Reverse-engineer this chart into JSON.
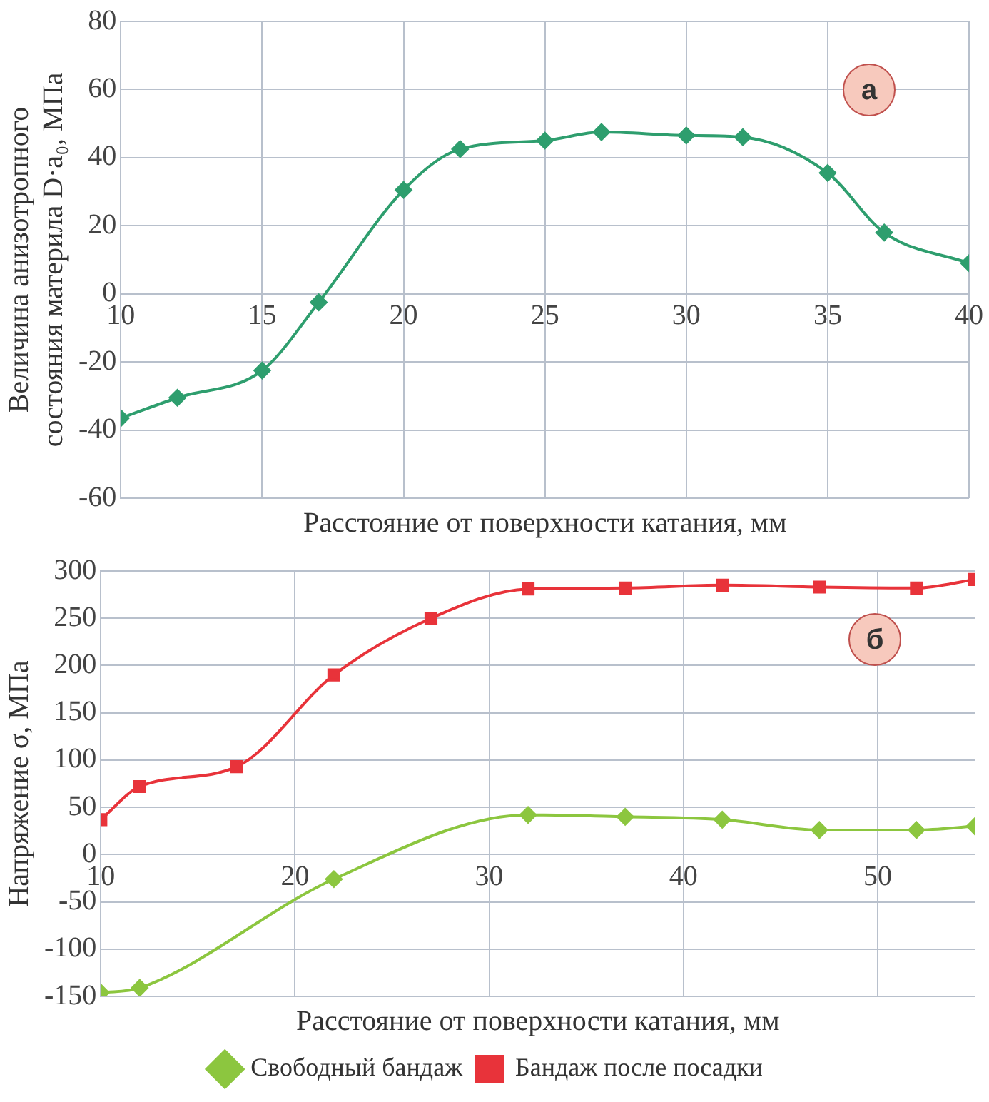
{
  "chart_data": [
    {
      "type": "line",
      "xlabel": "Расстояние от поверхности катания, мм",
      "ylabel": "Величина анизотропного состояния материла D·a₀, МПа",
      "annotations": [
        "а"
      ],
      "xlim": [
        10,
        40
      ],
      "xticks": [
        10,
        15,
        20,
        25,
        30,
        35,
        40
      ],
      "ylim": [
        -60,
        80
      ],
      "yticks": [
        -60,
        -40,
        -20,
        0,
        20,
        40,
        60,
        80
      ],
      "grid": true,
      "legend": false,
      "series": [
        {
          "color": "#2e9e6e",
          "marker": "diamond",
          "x": [
            10,
            12,
            15,
            17,
            20,
            22,
            25,
            27,
            30,
            32,
            35,
            37,
            40
          ],
          "values": [
            -36.5,
            -30.5,
            -22.5,
            -2.5,
            30.5,
            42.5,
            45,
            47.5,
            46.5,
            46,
            35.5,
            18,
            9
          ]
        }
      ]
    },
    {
      "type": "line",
      "xlabel": "Расстояние от поверхности катания, мм",
      "ylabel": "Напряжение σ, МПа",
      "annotations": [
        "б"
      ],
      "xlim": [
        10,
        55
      ],
      "xticks": [
        10,
        20,
        30,
        40,
        50
      ],
      "ylim": [
        -150,
        300
      ],
      "yticks": [
        -150,
        -100,
        -50,
        0,
        50,
        100,
        150,
        200,
        250,
        300
      ],
      "grid": true,
      "legend": "bottom",
      "series": [
        {
          "name": "Свободный бандаж",
          "color": "#8cc63f",
          "marker": "diamond",
          "x": [
            10,
            12,
            22,
            32,
            37,
            42,
            47,
            52,
            55
          ],
          "values": [
            -146,
            -141,
            -26,
            42,
            40,
            37,
            26,
            26,
            30
          ]
        },
        {
          "name": "Бандаж после посадки",
          "color": "#e8333a",
          "marker": "square",
          "x": [
            10,
            12,
            17,
            22,
            27,
            32,
            37,
            42,
            47,
            52,
            55
          ],
          "values": [
            37,
            72,
            93,
            190,
            250,
            281,
            282,
            285,
            283,
            282,
            291
          ]
        }
      ]
    }
  ]
}
